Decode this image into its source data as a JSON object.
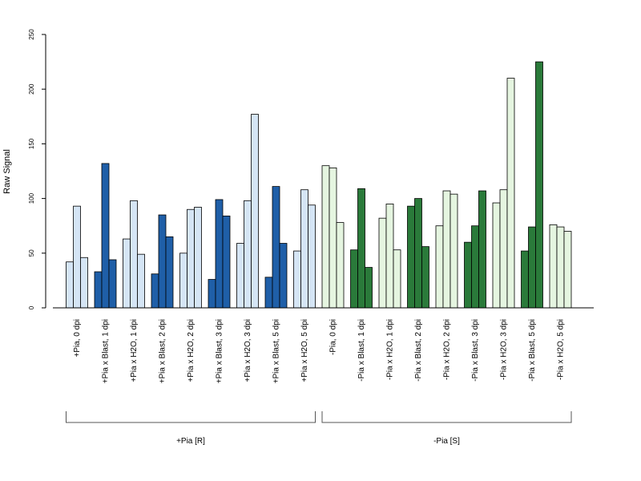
{
  "chart_data": {
    "type": "bar",
    "ylabel": "Raw Signal",
    "xlabel": "",
    "title": "",
    "ylim": [
      0,
      250
    ],
    "yticks": [
      0,
      50,
      100,
      150,
      200,
      250
    ],
    "categories": [
      "+Pia, 0 dpi",
      "+Pia x Blast, 1 dpi",
      "+Pia x H2O, 1 dpi",
      "+Pia x Blast, 2 dpi",
      "+Pia x H2O, 2 dpi",
      "+Pia x Blast, 3 dpi",
      "+Pia x H2O, 3 dpi",
      "+Pia x Blast, 5 dpi",
      "+Pia x H2O, 5 dpi",
      "-Pia, 0 dpi",
      "-Pia x Blast, 1 dpi",
      "-Pia x H2O, 1 dpi",
      "-Pia x Blast, 2 dpi",
      "-Pia x H2O, 2 dpi",
      "-Pia x Blast, 3 dpi",
      "-Pia x H2O, 3 dpi",
      "-Pia x Blast, 5 dpi",
      "-Pia x H2O, 5 dpi"
    ],
    "values": [
      [
        42,
        93,
        46
      ],
      [
        33,
        132,
        44
      ],
      [
        63,
        98,
        49
      ],
      [
        31,
        85,
        65
      ],
      [
        50,
        90,
        92
      ],
      [
        26,
        99,
        84
      ],
      [
        59,
        98,
        177
      ],
      [
        28,
        111,
        59
      ],
      [
        52,
        108,
        94
      ],
      [
        130,
        128,
        78
      ],
      [
        53,
        109,
        37
      ],
      [
        82,
        95,
        53
      ],
      [
        93,
        100,
        56
      ],
      [
        75,
        107,
        104
      ],
      [
        60,
        75,
        107
      ],
      [
        96,
        108,
        210
      ],
      [
        52,
        74,
        225
      ],
      [
        76,
        74,
        70
      ]
    ],
    "bar_colors": [
      "#d5e5f5",
      "#1f5fa8",
      "#d5e5f5",
      "#1f5fa8",
      "#d5e5f5",
      "#1f5fa8",
      "#d5e5f5",
      "#1f5fa8",
      "#d5e5f5",
      "#e5f5e0",
      "#2a7a3a",
      "#e5f5e0",
      "#2a7a3a",
      "#e5f5e0",
      "#2a7a3a",
      "#e5f5e0",
      "#2a7a3a",
      "#e5f5e0"
    ],
    "groups": [
      {
        "label": "+Pia [R]",
        "first": 0,
        "last": 8
      },
      {
        "label": "-Pia [S]",
        "first": 9,
        "last": 17
      }
    ]
  }
}
